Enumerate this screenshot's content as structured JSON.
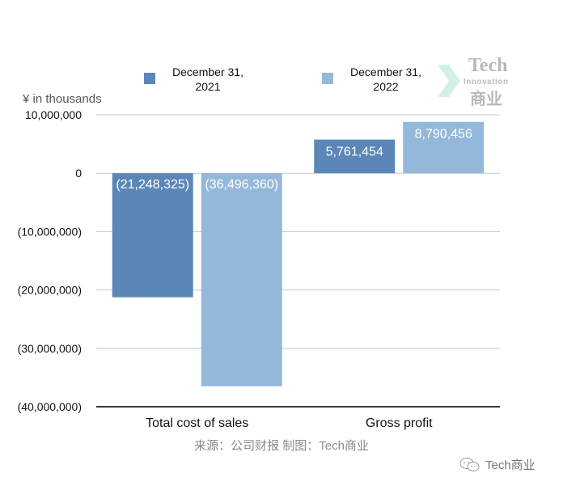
{
  "chart_data": {
    "type": "bar",
    "title": "",
    "unit_label": "¥  in thousands",
    "categories": [
      "Total cost of sales",
      "Gross profit"
    ],
    "series": [
      {
        "name": "December 31,\n2021",
        "color": "#5b87b8",
        "values": [
          -21248325,
          5761454
        ],
        "labels": [
          "(21,248,325)",
          "5,761,454"
        ]
      },
      {
        "name": "December 31,\n2022",
        "color": "#94b8da",
        "values": [
          -36496360,
          8790456
        ],
        "labels": [
          "(36,496,360)",
          "8,790,456"
        ]
      }
    ],
    "ylim": [
      -40000000,
      10000000
    ],
    "yticks": [
      10000000,
      0,
      -10000000,
      -20000000,
      -30000000,
      -40000000
    ],
    "ytick_labels": [
      "10,000,000",
      "0",
      "(10,000,000)",
      "(20,000,000)",
      "(30,000,000)",
      "(40,000,000)"
    ],
    "grid": true,
    "legend_position": "top"
  },
  "source_text": "来源：公司财报 制图：Tech商业",
  "watermark": {
    "text": "Tech商业",
    "icon": "wechat-icon"
  },
  "logo": {
    "line1": "Tech",
    "line2": "Innovation",
    "line3": "商业"
  }
}
